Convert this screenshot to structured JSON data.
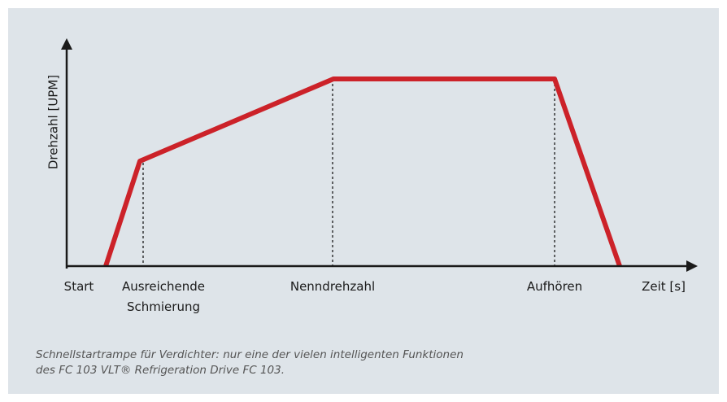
{
  "axis_labels": {
    "y": "Drehzahl [UPM]",
    "x": "Zeit [s]"
  },
  "markers": [
    {
      "lines": [
        "Start"
      ]
    },
    {
      "lines": [
        "Ausreichende",
        "Schmierung"
      ]
    },
    {
      "lines": [
        "Nenndrehzahl"
      ]
    },
    {
      "lines": [
        "Aufhören"
      ]
    }
  ],
  "caption": [
    "Schnellstartrampe für Verdichter: nur eine der vielen intelligenten Funktionen",
    "des FC 103 VLT® Refrigeration Drive FC 103."
  ]
}
